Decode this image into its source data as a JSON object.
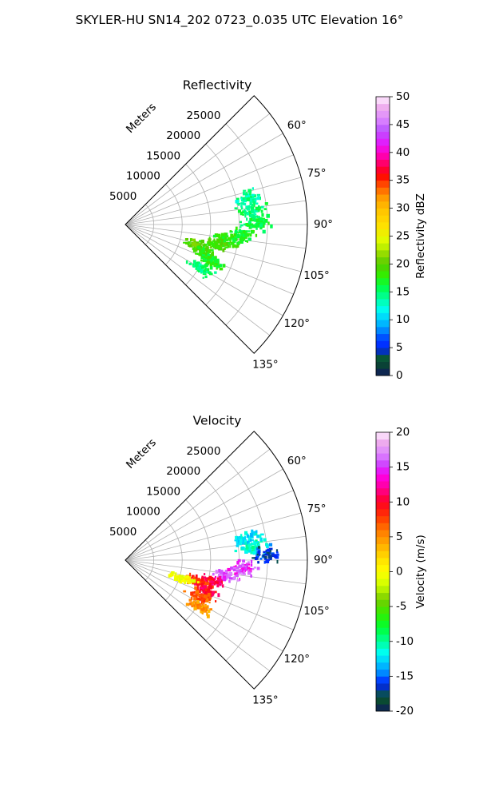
{
  "title": "SKYLER-HU  SN14_202  0723_0.035 UTC Elevation 16°",
  "chart_data": [
    {
      "type": "polar-sector",
      "title": "Reflectivity",
      "range_label": "Meters",
      "range_ticks": [
        5000,
        10000,
        15000,
        20000,
        25000
      ],
      "r_max": 32000,
      "angle_range": [
        45,
        135
      ],
      "angle_ticks": [
        "60°",
        "75°",
        "90°",
        "105°",
        "120°",
        "135°"
      ],
      "colorbar": {
        "label": "Reflectivity dBZ",
        "min": 0,
        "max": 50,
        "ticks": [
          0,
          5,
          10,
          15,
          20,
          25,
          30,
          35,
          40,
          45,
          50
        ]
      },
      "echo_clusters": [
        {
          "angle": 89,
          "range": 23000,
          "value": 16
        },
        {
          "angle": 84,
          "range": 22500,
          "value": 15
        },
        {
          "angle": 78,
          "range": 22000,
          "value": 14
        },
        {
          "angle": 95,
          "range": 20500,
          "value": 17
        },
        {
          "angle": 99,
          "range": 18000,
          "value": 18
        },
        {
          "angle": 103,
          "range": 16000,
          "value": 19
        },
        {
          "angle": 106,
          "range": 13500,
          "value": 20
        },
        {
          "angle": 110,
          "range": 15000,
          "value": 18
        },
        {
          "angle": 113,
          "range": 16500,
          "value": 17
        },
        {
          "angle": 120,
          "range": 15500,
          "value": 15
        }
      ]
    },
    {
      "type": "polar-sector",
      "title": "Velocity",
      "range_label": "Meters",
      "range_ticks": [
        5000,
        10000,
        15000,
        20000,
        25000
      ],
      "r_max": 32000,
      "angle_range": [
        45,
        135
      ],
      "angle_ticks": [
        "60°",
        "75°",
        "90°",
        "105°",
        "120°",
        "135°"
      ],
      "colorbar": {
        "label": "Velocity (m/s)",
        "min": -20,
        "max": 20,
        "ticks": [
          -20,
          -15,
          -10,
          -5,
          0,
          5,
          10,
          15,
          20
        ]
      },
      "echo_clusters": [
        {
          "angle": 84,
          "range": 22500,
          "value": -11
        },
        {
          "angle": 80,
          "range": 22000,
          "value": -12
        },
        {
          "angle": 88,
          "range": 24800,
          "value": -16
        },
        {
          "angle": 94,
          "range": 21000,
          "value": 15
        },
        {
          "angle": 99,
          "range": 18000,
          "value": 16
        },
        {
          "angle": 103,
          "range": 15500,
          "value": 11
        },
        {
          "angle": 107,
          "range": 13500,
          "value": 8
        },
        {
          "angle": 111,
          "range": 15000,
          "value": 10
        },
        {
          "angle": 108,
          "range": 10500,
          "value": 0
        },
        {
          "angle": 116,
          "range": 14500,
          "value": 7
        },
        {
          "angle": 122,
          "range": 15500,
          "value": 5
        }
      ]
    }
  ]
}
